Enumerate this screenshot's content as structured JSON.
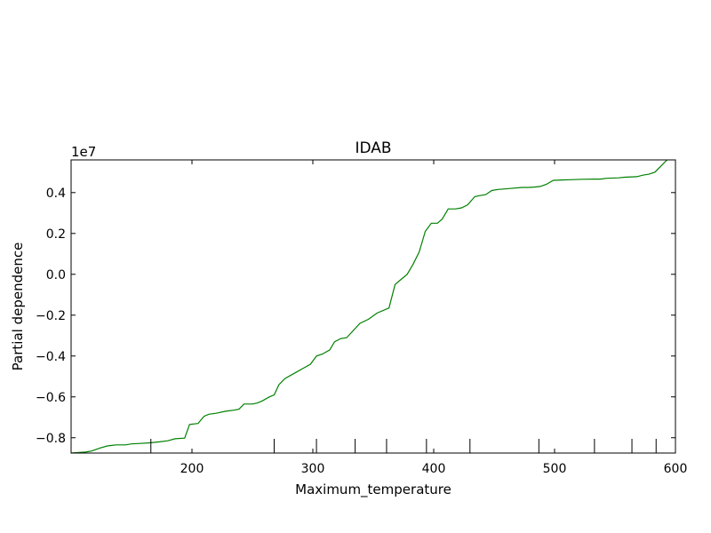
{
  "chart_data": {
    "type": "line",
    "title": "IDAB",
    "xlabel": "Maximum_temperature",
    "ylabel": "Partial dependence",
    "y_offset_label": "1e7",
    "y_multiplier": 10000000,
    "xlim": [
      100,
      600
    ],
    "ylim": [
      -8.75,
      5.6
    ],
    "xticks": [
      200,
      300,
      400,
      500,
      600
    ],
    "xtick_labels": [
      "200",
      "300",
      "400",
      "500",
      "600"
    ],
    "yticks": [
      -8,
      -6,
      -4,
      -2,
      0,
      2,
      4
    ],
    "ytick_labels": [
      "−0.8",
      "−0.6",
      "−0.4",
      "−0.2",
      "0.0",
      "0.2",
      "0.4"
    ],
    "grid": false,
    "series": [
      {
        "color": "#008000",
        "x": [
          100,
          112,
          117,
          124,
          130,
          137,
          145,
          150,
          157,
          165,
          173,
          180,
          186,
          194,
          198,
          205,
          210,
          214,
          220,
          228,
          235,
          239,
          243,
          250,
          254,
          258,
          264,
          268,
          272,
          277,
          286,
          292,
          298,
          303,
          308,
          314,
          318,
          323,
          328,
          339,
          346,
          353,
          363,
          368,
          373,
          378,
          383,
          388,
          393,
          398,
          403,
          407,
          412,
          418,
          423,
          428,
          434,
          438,
          443,
          448,
          453,
          463,
          473,
          478,
          483,
          488,
          493,
          499,
          508,
          513,
          523,
          533,
          538,
          543,
          553,
          558,
          568,
          573,
          578,
          583,
          588,
          593
        ],
        "y": [
          -8.75,
          -8.7,
          -8.65,
          -8.5,
          -8.4,
          -8.35,
          -8.35,
          -8.3,
          -8.28,
          -8.25,
          -8.2,
          -8.15,
          -8.05,
          -8.02,
          -7.35,
          -7.3,
          -6.95,
          -6.85,
          -6.8,
          -6.7,
          -6.65,
          -6.6,
          -6.35,
          -6.35,
          -6.3,
          -6.2,
          -6.0,
          -5.9,
          -5.4,
          -5.1,
          -4.8,
          -4.6,
          -4.4,
          -4.0,
          -3.9,
          -3.7,
          -3.3,
          -3.15,
          -3.1,
          -2.4,
          -2.2,
          -1.9,
          -1.65,
          -0.5,
          -0.25,
          0.0,
          0.5,
          1.1,
          2.1,
          2.5,
          2.5,
          2.7,
          3.2,
          3.2,
          3.25,
          3.4,
          3.8,
          3.85,
          3.9,
          4.1,
          4.15,
          4.2,
          4.25,
          4.25,
          4.27,
          4.3,
          4.4,
          4.6,
          4.62,
          4.63,
          4.65,
          4.66,
          4.66,
          4.7,
          4.72,
          4.75,
          4.78,
          4.85,
          4.9,
          5.0,
          5.3,
          5.6
        ]
      }
    ],
    "rug_x": [
      166,
      268,
      303,
      335,
      361,
      394,
      430,
      487,
      533,
      564,
      584
    ]
  }
}
